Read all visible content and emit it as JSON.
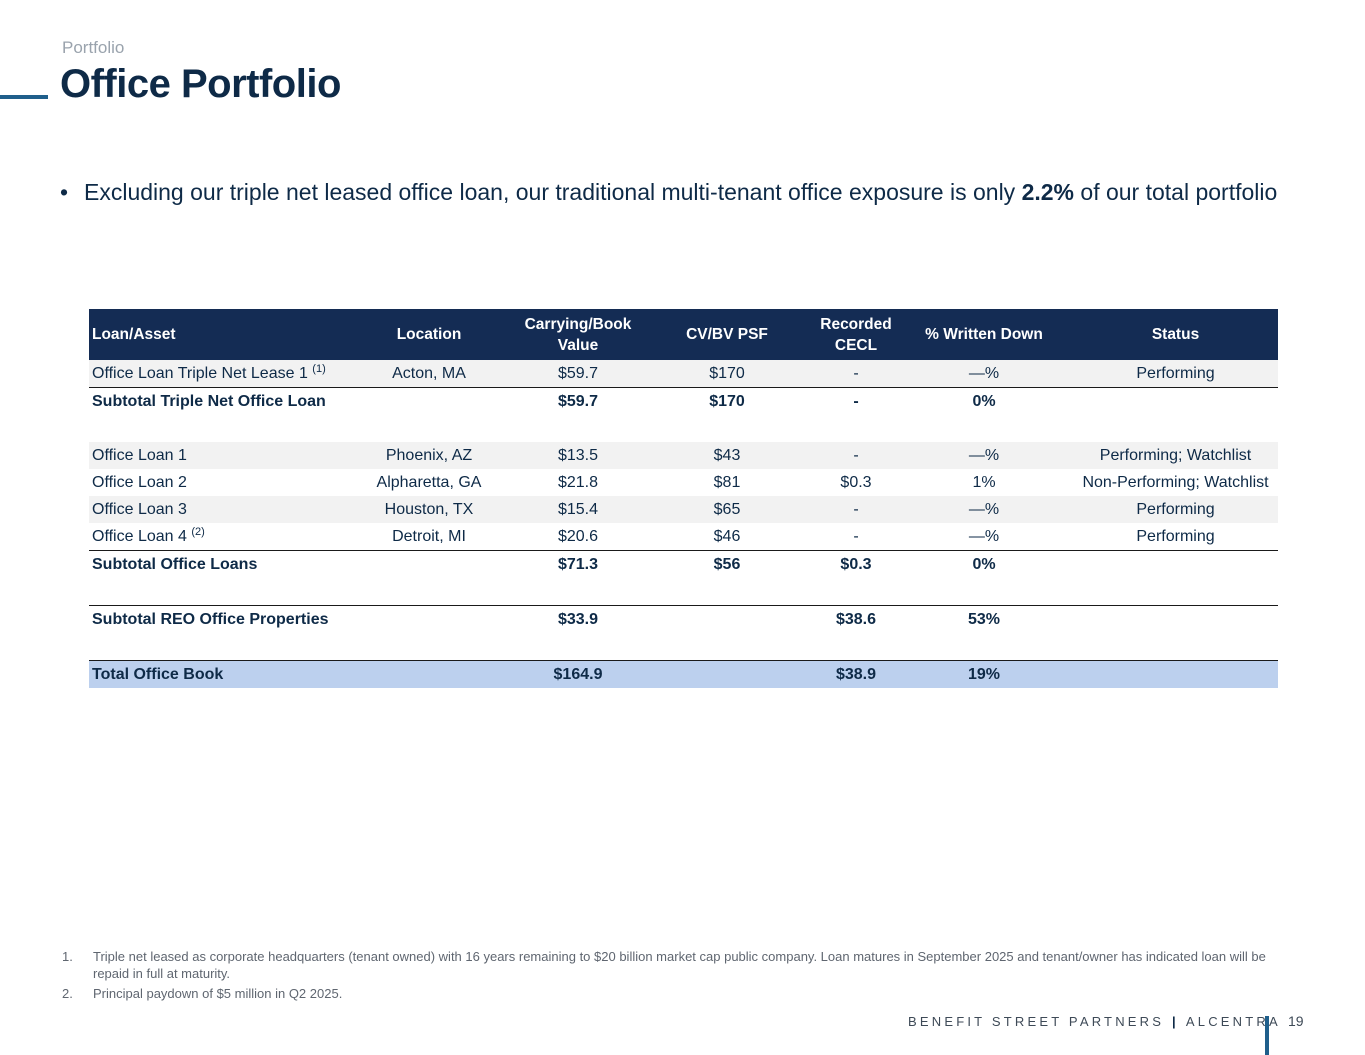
{
  "header": {
    "section": "Portfolio",
    "title": "Office Portfolio"
  },
  "bullet": {
    "text_before": "Excluding our triple net leased office loan, our traditional multi-tenant office exposure is only ",
    "highlight": "2.2%",
    "text_after": " of our total portfolio"
  },
  "table": {
    "headers": [
      "Loan/Asset",
      "Location",
      "Carrying/Book Value",
      "CV/BV PSF",
      "Recorded CECL",
      "% Written Down",
      "Status"
    ],
    "rows": [
      {
        "asset": "Office Loan Triple Net Lease 1",
        "note": "(1)",
        "location": "Acton, MA",
        "value": "$59.7",
        "psf": "$170",
        "cecl": "-",
        "written": "—%",
        "status": "Performing"
      },
      {
        "asset": "Subtotal Triple Net Office Loan",
        "location": "",
        "value": "$59.7",
        "psf": "$170",
        "cecl": "-",
        "written": "0%",
        "status": ""
      },
      {
        "asset": "Office Loan 1",
        "location": "Phoenix, AZ",
        "value": "$13.5",
        "psf": "$43",
        "cecl": "-",
        "written": "—%",
        "status": "Performing; Watchlist"
      },
      {
        "asset": "Office Loan 2",
        "location": "Alpharetta, GA",
        "value": "$21.8",
        "psf": "$81",
        "cecl": "$0.3",
        "written": "1%",
        "status": "Non-Performing; Watchlist"
      },
      {
        "asset": "Office Loan 3",
        "location": "Houston, TX",
        "value": "$15.4",
        "psf": "$65",
        "cecl": "-",
        "written": "—%",
        "status": "Performing"
      },
      {
        "asset": "Office Loan 4",
        "note": "(2)",
        "location": "Detroit, MI",
        "value": "$20.6",
        "psf": "$46",
        "cecl": "-",
        "written": "—%",
        "status": "Performing"
      },
      {
        "asset": "Subtotal Office Loans",
        "location": "",
        "value": "$71.3",
        "psf": "$56",
        "cecl": "$0.3",
        "written": "0%",
        "status": ""
      },
      {
        "asset": "Subtotal REO Office Properties",
        "location": "",
        "value": "$33.9",
        "psf": "",
        "cecl": "$38.6",
        "written": "53%",
        "status": ""
      },
      {
        "asset": "Total Office Book",
        "location": "",
        "value": "$164.9",
        "psf": "",
        "cecl": "$38.9",
        "written": "19%",
        "status": ""
      }
    ]
  },
  "footnotes": [
    {
      "num": "1.",
      "text": "Triple net leased as corporate headquarters (tenant owned) with 16 years remaining to $20 billion market cap public company. Loan matures in September 2025 and tenant/owner has indicated loan will be repaid in full at maturity."
    },
    {
      "num": "2.",
      "text": "Principal paydown of $5 million in Q2 2025."
    }
  ],
  "footer": {
    "brand_left": "BENEFIT STREET PARTNERS",
    "brand_sep": "|",
    "brand_right": "ALCENTRA",
    "page_number": "19"
  }
}
